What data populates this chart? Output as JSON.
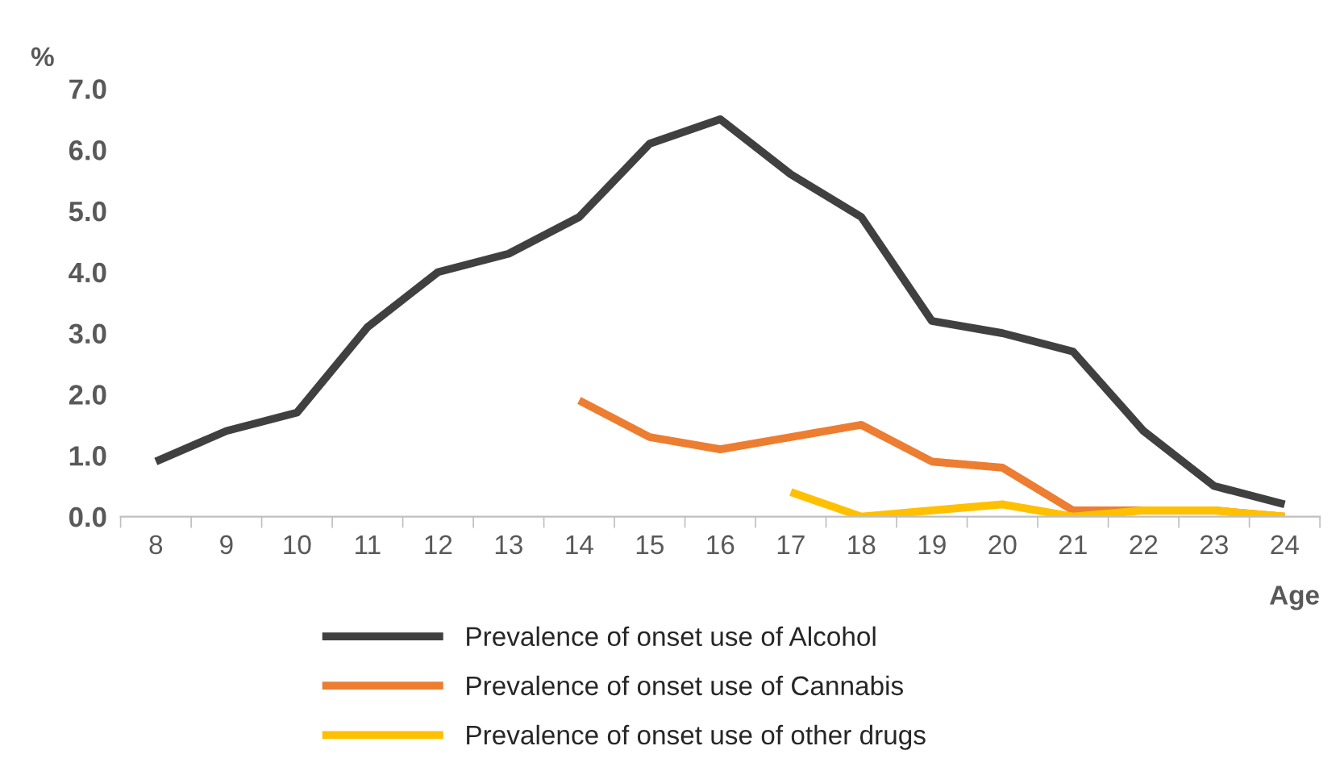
{
  "chart_data": {
    "type": "line",
    "xlabel": "Age",
    "ylabel": "%",
    "categories": [
      "8",
      "9",
      "10",
      "11",
      "12",
      "13",
      "14",
      "15",
      "16",
      "17",
      "18",
      "19",
      "20",
      "21",
      "22",
      "23",
      "24"
    ],
    "series": [
      {
        "name": "Prevalence of onset use of Alcohol",
        "color": "#404040",
        "values": [
          0.9,
          1.4,
          1.7,
          3.1,
          4.0,
          4.3,
          4.9,
          6.1,
          6.5,
          5.6,
          4.9,
          3.2,
          3.0,
          2.7,
          1.4,
          0.5,
          0.2
        ]
      },
      {
        "name": "Prevalence of onset use of Cannabis",
        "color": "#ed7d31",
        "values": [
          null,
          null,
          null,
          null,
          null,
          null,
          1.9,
          1.3,
          1.1,
          1.3,
          1.5,
          0.9,
          0.8,
          0.1,
          0.1,
          0.1,
          0.0
        ]
      },
      {
        "name": "Prevalence of onset use of other drugs",
        "color": "#ffc000",
        "values": [
          null,
          null,
          null,
          null,
          null,
          null,
          null,
          null,
          null,
          0.4,
          0.0,
          0.1,
          0.2,
          0.0,
          0.1,
          0.1,
          0.0
        ]
      }
    ],
    "ylim": [
      0,
      7
    ],
    "yticks": [
      {
        "value": 0,
        "label": "0.0"
      },
      {
        "value": 1,
        "label": "1.0"
      },
      {
        "value": 2,
        "label": "2.0"
      },
      {
        "value": 3,
        "label": "3.0"
      },
      {
        "value": 4,
        "label": "4.0"
      },
      {
        "value": 5,
        "label": "5.0"
      },
      {
        "value": 6,
        "label": "6.0"
      },
      {
        "value": 7,
        "label": "7.0"
      }
    ],
    "grid": false,
    "legend": "bottom",
    "marker": "none",
    "line_style": "solid"
  }
}
